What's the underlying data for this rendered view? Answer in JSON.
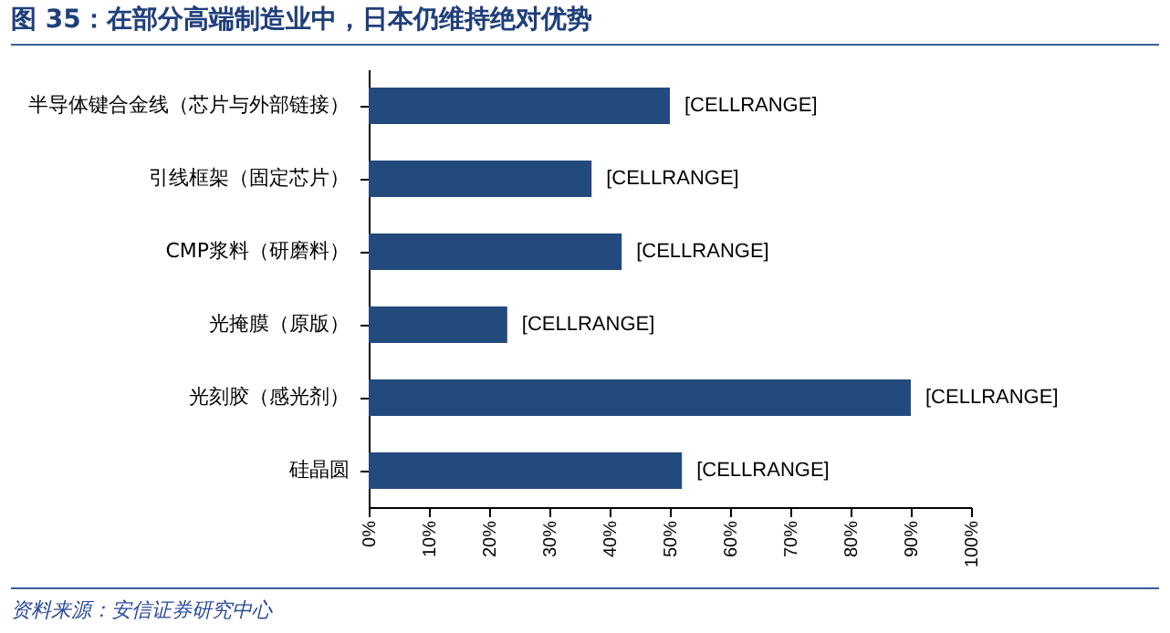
{
  "chart_data": {
    "type": "bar",
    "orientation": "horizontal",
    "title": "图 35：在部分高端制造业中，日本仍维持绝对优势",
    "categories": [
      "半导体键合金线（芯片与外部链接）",
      "引线框架（固定芯片）",
      "CMP浆料（研磨料）",
      "光掩膜（原版）",
      "光刻胶（感光剂）",
      "硅晶圆"
    ],
    "values": [
      50,
      37,
      42,
      23,
      90,
      52
    ],
    "value_labels": [
      "[CELLRANGE]",
      "[CELLRANGE]",
      "[CELLRANGE]",
      "[CELLRANGE]",
      "[CELLRANGE]",
      "[CELLRANGE]"
    ],
    "color": "#224a7d",
    "xlim": [
      0,
      100
    ],
    "xticks": [
      {
        "value": 0,
        "label": "0%"
      },
      {
        "value": 10,
        "label": "10%"
      },
      {
        "value": 20,
        "label": "20%"
      },
      {
        "value": 30,
        "label": "30%"
      },
      {
        "value": 40,
        "label": "40%"
      },
      {
        "value": 50,
        "label": "50%"
      },
      {
        "value": 60,
        "label": "60%"
      },
      {
        "value": 70,
        "label": "70%"
      },
      {
        "value": 80,
        "label": "80%"
      },
      {
        "value": 90,
        "label": "90%"
      },
      {
        "value": 100,
        "label": "100%"
      }
    ],
    "grid": false,
    "annotations": [
      "资料来源：安信证券研究中心"
    ]
  }
}
